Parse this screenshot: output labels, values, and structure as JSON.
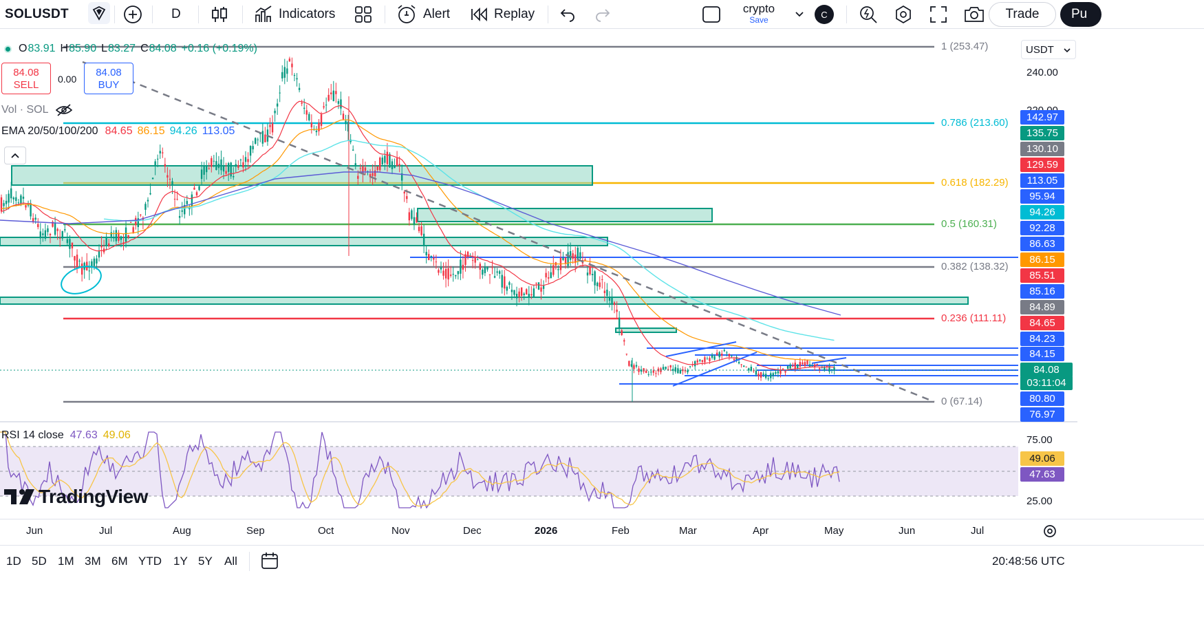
{
  "toolbar": {
    "symbol": "SOLUSDT",
    "interval": "D",
    "indicators_label": "Indicators",
    "alert_label": "Alert",
    "replay_label": "Replay",
    "layout_name": "crypto",
    "layout_save": "Save",
    "avatar_letter": "C",
    "trade_label": "Trade",
    "publish_label": "Pu"
  },
  "legend": {
    "open_label": "O",
    "open": "83.91",
    "high_label": "H",
    "high": "85.90",
    "low_label": "L",
    "low": "83.27",
    "close_label": "C",
    "close": "84.08",
    "change": "+0.16 (+0.19%)",
    "sell_price": "84.08",
    "sell_label": "SELL",
    "spread": "0.00",
    "buy_price": "84.08",
    "buy_label": "BUY",
    "vol_label": "Vol · SOL",
    "ema_label": "EMA 20/50/100/200",
    "ema20": "84.65",
    "ema50": "86.15",
    "ema100": "94.26",
    "ema200": "113.05"
  },
  "colors": {
    "up": "#089981",
    "down": "#f23645",
    "ema20": "#f23645",
    "ema50": "#ff9800",
    "ema100": "#5de3e8",
    "ema200": "#5b5bd6",
    "zone": "#8fd7c3",
    "zone_border": "#089981",
    "rsi_line": "#7e57c2",
    "rsi_ma": "#f7c548",
    "rsi_band": "#ede7f6"
  },
  "price_axis": {
    "currency": "USDT",
    "labels": [
      "240.00",
      "220.00"
    ],
    "tags": [
      {
        "v": "142.97",
        "c": "#2962ff"
      },
      {
        "v": "135.75",
        "c": "#089981"
      },
      {
        "v": "130.10",
        "c": "#787b86"
      },
      {
        "v": "129.59",
        "c": "#f23645"
      },
      {
        "v": "113.05",
        "c": "#2962ff"
      },
      {
        "v": "95.94",
        "c": "#2962ff"
      },
      {
        "v": "94.26",
        "c": "#00bcd4"
      },
      {
        "v": "92.28",
        "c": "#2962ff"
      },
      {
        "v": "86.63",
        "c": "#2962ff"
      },
      {
        "v": "86.15",
        "c": "#ff9800"
      },
      {
        "v": "85.51",
        "c": "#f23645"
      },
      {
        "v": "85.16",
        "c": "#2962ff"
      },
      {
        "v": "84.89",
        "c": "#787b86"
      },
      {
        "v": "84.65",
        "c": "#f23645"
      },
      {
        "v": "84.23",
        "c": "#2962ff"
      },
      {
        "v": "84.15",
        "c": "#2962ff"
      },
      {
        "v": "84.08",
        "c": "#089981"
      },
      {
        "v": "03:11:04",
        "c": "#089981"
      },
      {
        "v": "80.80",
        "c": "#2962ff"
      },
      {
        "v": "76.97",
        "c": "#2962ff"
      }
    ]
  },
  "fib": {
    "levels": [
      {
        "label": "1 (253.47)",
        "color": "#787b86"
      },
      {
        "label": "0.786 (213.60)",
        "color": "#00bcd4"
      },
      {
        "label": "0.618 (182.29)",
        "color": "#f7b500"
      },
      {
        "label": "0.5 (160.31)",
        "color": "#4caf50"
      },
      {
        "label": "0.382 (138.32)",
        "color": "#787b86"
      },
      {
        "label": "0.236 (111.11)",
        "color": "#f23645"
      },
      {
        "label": "0 (67.14)",
        "color": "#787b86"
      }
    ]
  },
  "rsi": {
    "label": "RSI 14 close",
    "value": "47.63",
    "ma": "49.06",
    "upper": "75.00",
    "lower": "25.00"
  },
  "time_axis": [
    "Jun",
    "Jul",
    "Aug",
    "Sep",
    "Oct",
    "Nov",
    "Dec",
    "2026",
    "Feb",
    "Mar",
    "Apr",
    "May",
    "Jun",
    "Jul"
  ],
  "ranges": [
    "1D",
    "5D",
    "1M",
    "3M",
    "6M",
    "YTD",
    "1Y",
    "5Y",
    "All"
  ],
  "clock": "20:48:56 UTC",
  "brand": "TradingView"
}
